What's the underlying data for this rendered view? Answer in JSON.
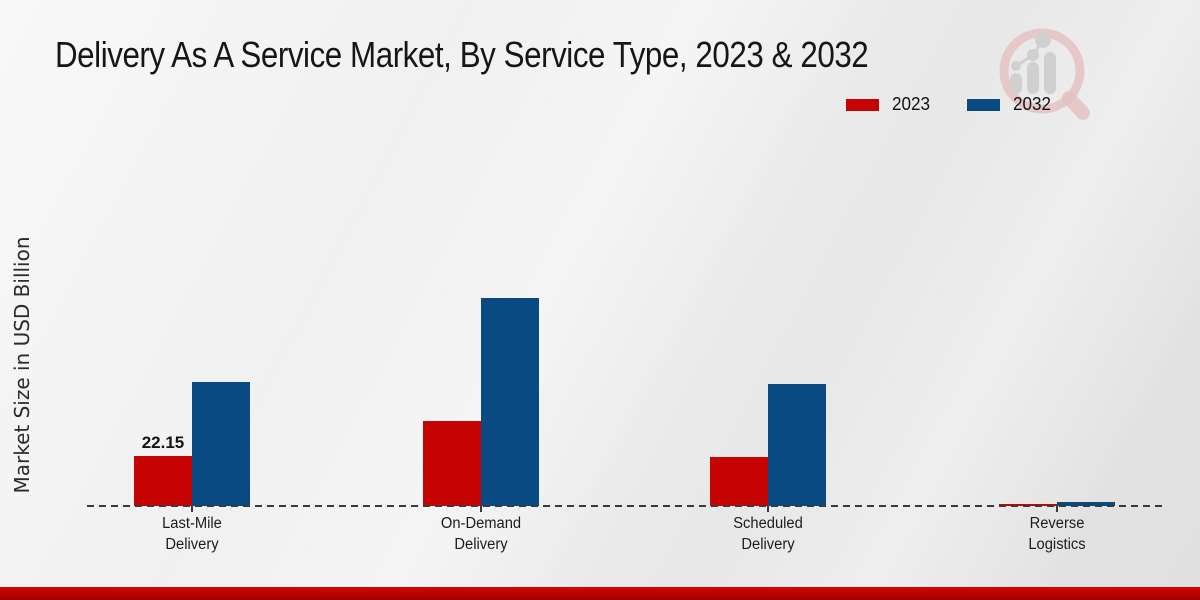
{
  "header": {
    "title": "Delivery As A Service Market, By Service Type, 2023 & 2032"
  },
  "watermark": {
    "name": "magnifier-growth-chart-logo"
  },
  "footer": {
    "accent_color": "#c40404"
  },
  "chart_data": {
    "type": "bar",
    "title": "Delivery As A Service Market, By Service Type, 2023 & 2032",
    "xlabel": "",
    "ylabel": "Market Size in USD Billion",
    "categories": [
      "Last-Mile Delivery",
      "On-Demand Delivery",
      "Scheduled Delivery",
      "Reverse Logistics"
    ],
    "series": [
      {
        "name": "2023",
        "color": "#c60404",
        "values": [
          22.15,
          37.7,
          21.7,
          0.7
        ]
      },
      {
        "name": "2032",
        "color": "#0a4a82",
        "values": [
          54.9,
          92.1,
          54.0,
          1.8
        ]
      }
    ],
    "bar_labels": [
      {
        "category": "Last-Mile Delivery",
        "series": "2023",
        "text": "22.15"
      }
    ],
    "legend": {
      "position": "top-right",
      "entries": [
        "2023",
        "2032"
      ]
    },
    "axis": {
      "baseline_style": "dashed",
      "baseline_color": "#3a3a3a",
      "grid": false,
      "y_ticks_visible": false
    },
    "ylim": [
      0,
      100
    ]
  }
}
